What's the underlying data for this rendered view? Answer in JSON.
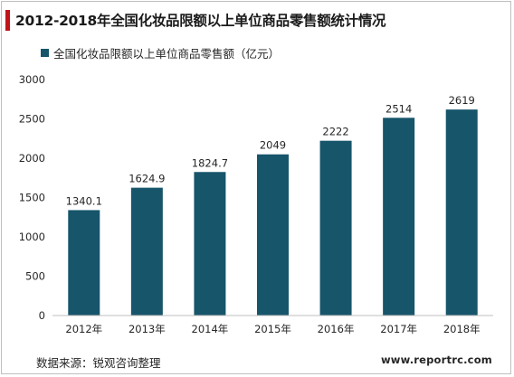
{
  "title": "2012-2018年全国化妆品限额以上单位商品零售额统计情况",
  "source_text": "数据来源：锐观咨询整理",
  "website": "www.reportrc.com",
  "colors": {
    "accent": "#c0141b",
    "bar": "#17556b",
    "axis": "#bfbfbf",
    "text": "#262626"
  },
  "chart_data": {
    "type": "bar",
    "categories": [
      "2012年",
      "2013年",
      "2014年",
      "2015年",
      "2016年",
      "2017年",
      "2018年"
    ],
    "series": [
      {
        "name": "全国化妆品限额以上单位商品零售额（亿元）",
        "values": [
          1340.1,
          1624.9,
          1824.7,
          2049,
          2222,
          2514,
          2619
        ],
        "labels": [
          "1340.1",
          "1624.9",
          "1824.7",
          "2049",
          "2222",
          "2514",
          "2619"
        ]
      }
    ],
    "ylim": [
      0,
      3000
    ],
    "yticks": [
      0,
      500,
      1000,
      1500,
      2000,
      2500,
      3000
    ],
    "grid": false,
    "legend_position": "top-left"
  }
}
